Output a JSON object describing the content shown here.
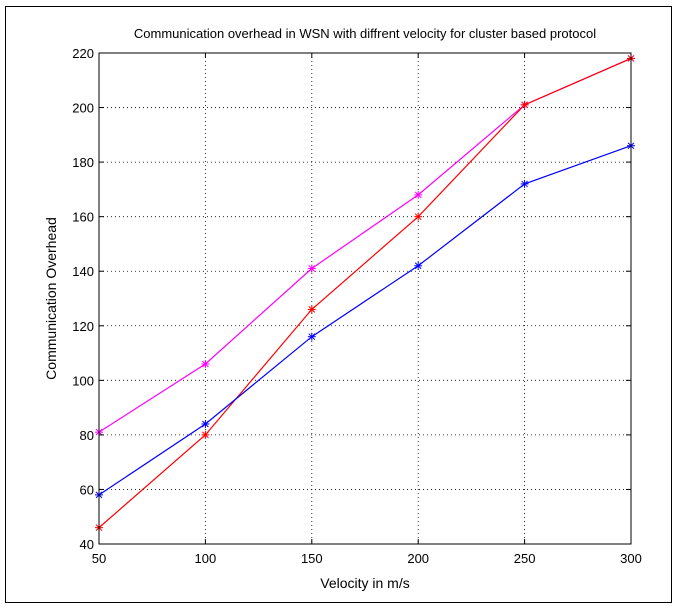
{
  "chart_data": {
    "type": "line",
    "title": "Communication overhead in WSN with diffrent velocity for cluster based protocol",
    "xlabel": "Velocity in m/s",
    "ylabel": "Communication Overhead",
    "x": [
      50,
      100,
      150,
      200,
      250,
      300
    ],
    "xlim": [
      50,
      300
    ],
    "ylim": [
      40,
      220
    ],
    "xticks": [
      "50",
      "100",
      "150",
      "200",
      "250",
      "300"
    ],
    "yticks": [
      "40",
      "60",
      "80",
      "100",
      "120",
      "140",
      "160",
      "180",
      "200",
      "220"
    ],
    "grid": true,
    "marker": "asterisk",
    "series": [
      {
        "color": "#ff00ff",
        "values": [
          81,
          106,
          141,
          168,
          201,
          218
        ]
      },
      {
        "color": "#ff0000",
        "values": [
          46,
          80,
          126,
          160,
          201,
          218
        ]
      },
      {
        "color": "#0000ff",
        "values": [
          58,
          84,
          116,
          142,
          172,
          186
        ]
      }
    ]
  }
}
